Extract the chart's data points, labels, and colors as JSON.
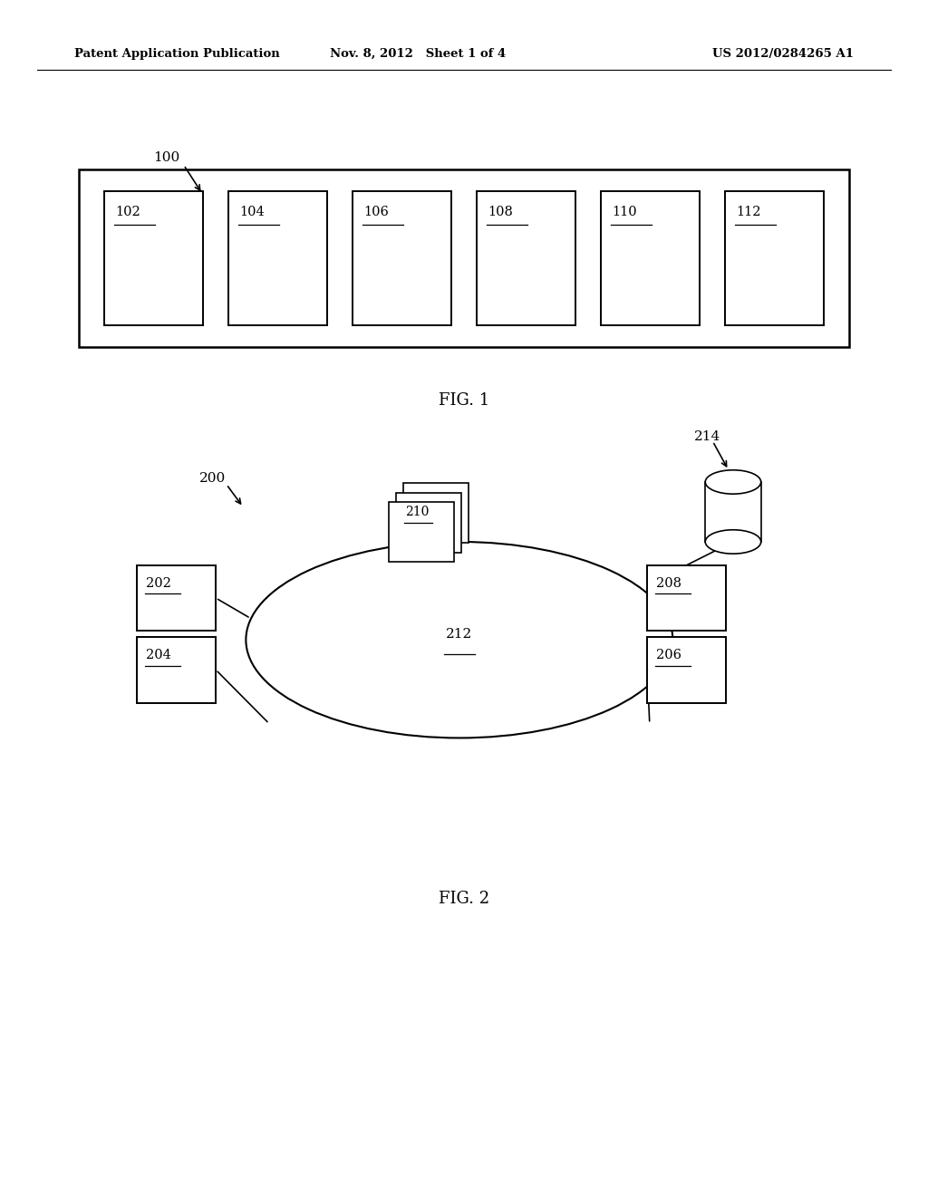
{
  "bg_color": "#ffffff",
  "header_left": "Patent Application Publication",
  "header_mid": "Nov. 8, 2012   Sheet 1 of 4",
  "header_right": "US 2012/0284265 A1",
  "fig1_label": "100",
  "fig1_caption": "FIG. 1",
  "fig1_boxes": [
    "102",
    "104",
    "106",
    "108",
    "110",
    "112"
  ],
  "fig2_label": "200",
  "fig2_caption": "FIG. 2",
  "fig2_ellipse_label": "212",
  "db_label": "214"
}
